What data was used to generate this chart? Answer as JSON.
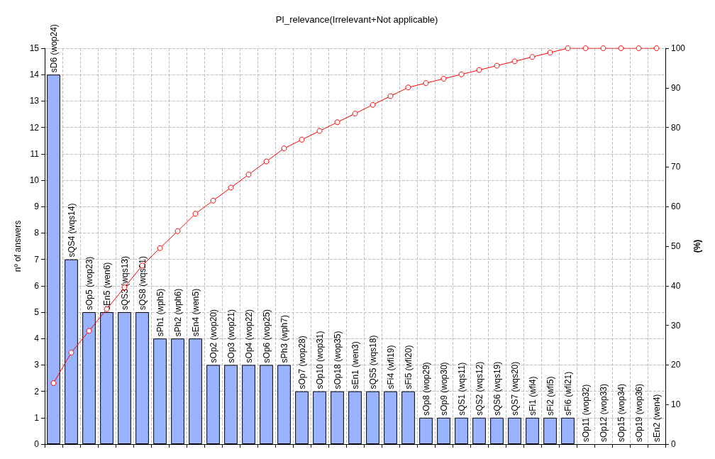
{
  "chart_data": {
    "type": "bar",
    "title": "PI_relevance(Irrelevant+Not applicable)",
    "ylabel": "nº of answers",
    "y2label": "(%)",
    "categories": [
      "sD6 (wop24)",
      "sQS4 (wqs14)",
      "sOp5 (wop23)",
      "sEn5 (wen6)",
      "sQS3 (wqs13)",
      "sQS8 (wqs21)",
      "sPh1 (wph5)",
      "sPh2 (wph6)",
      "sEn4 (wen5)",
      "sOp2 (wop20)",
      "sOp3 (wop21)",
      "sOp4 (wop22)",
      "sOp6 (wop25)",
      "sPh3 (wph7)",
      "sOp7 (wop28)",
      "sOp10 (wop31)",
      "sOp18 (wop35)",
      "sEn1 (wen3)",
      "sQS5 (wqs18)",
      "sFi4 (wfi19)",
      "sFi5 (wfi20)",
      "sOp8 (wop29)",
      "sOp9 (wop30)",
      "sQS1 (wqs11)",
      "sQS2 (wqs12)",
      "sQS6 (wqs19)",
      "sQS7 (wqs20)",
      "sFi1 (wfi4)",
      "sFi2 (wfi5)",
      "sFi6 (wfi21)",
      "sOp11 (wop32)",
      "sOp12 (wop33)",
      "sOp15 (wop34)",
      "sOp19 (wop36)",
      "sEn2 (wen4)"
    ],
    "series": [
      {
        "color": "#99b3ff",
        "values": [
          14,
          7,
          5,
          5,
          5,
          5,
          4,
          4,
          4,
          3,
          3,
          3,
          3,
          3,
          2,
          2,
          2,
          2,
          2,
          2,
          2,
          1,
          1,
          1,
          1,
          1,
          1,
          1,
          1,
          1,
          0,
          0,
          0,
          0,
          0
        ]
      },
      {
        "type": "line",
        "axis": "y2",
        "color": "#ff0000",
        "marker": "circle",
        "values": [
          15.4,
          23.1,
          28.6,
          34.1,
          39.6,
          45.1,
          49.5,
          53.8,
          58.2,
          61.5,
          64.8,
          68.1,
          71.4,
          74.7,
          76.9,
          79.1,
          81.3,
          83.5,
          85.7,
          87.9,
          90.1,
          91.2,
          92.3,
          93.4,
          94.5,
          95.6,
          96.7,
          97.8,
          98.9,
          100,
          100,
          100,
          100,
          100,
          100
        ]
      }
    ],
    "ylim": [
      0,
      15
    ],
    "yticks": [
      0,
      1,
      2,
      3,
      4,
      5,
      6,
      7,
      8,
      9,
      10,
      11,
      12,
      13,
      14,
      15
    ],
    "y2lim": [
      0,
      100
    ],
    "y2ticks": [
      0,
      10,
      20,
      30,
      40,
      50,
      60,
      70,
      80,
      90,
      100
    ],
    "grid": true,
    "tick_labels": "y"
  }
}
